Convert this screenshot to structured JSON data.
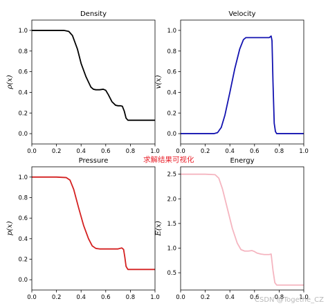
{
  "caption": "求解结果可视化",
  "watermark": "CSDN @Togethe_CZ",
  "chart_data": [
    {
      "type": "line",
      "title": "Density",
      "xlabel": "",
      "ylabel": "ρ(x)",
      "xlim": [
        0.0,
        1.0
      ],
      "ylim": [
        -0.1,
        1.1
      ],
      "xticks": [
        "0.0",
        "0.2",
        "0.4",
        "0.6",
        "0.8",
        "1.0"
      ],
      "yticks": [
        "0.0",
        "0.2",
        "0.4",
        "0.6",
        "0.8",
        "1.0"
      ],
      "grid": false,
      "legend": "none",
      "color": "#000000",
      "x": [
        0.0,
        0.2,
        0.26,
        0.3,
        0.33,
        0.37,
        0.4,
        0.44,
        0.48,
        0.5,
        0.52,
        0.55,
        0.58,
        0.6,
        0.62,
        0.65,
        0.68,
        0.7,
        0.72,
        0.735,
        0.75,
        0.765,
        0.78,
        1.0
      ],
      "y": [
        1.0,
        1.0,
        1.0,
        0.99,
        0.95,
        0.82,
        0.68,
        0.55,
        0.45,
        0.43,
        0.425,
        0.425,
        0.43,
        0.42,
        0.38,
        0.31,
        0.275,
        0.27,
        0.27,
        0.265,
        0.22,
        0.15,
        0.13,
        0.13
      ]
    },
    {
      "type": "line",
      "title": "Velocity",
      "xlabel": "",
      "ylabel": "v(x)",
      "xlim": [
        0.0,
        1.0
      ],
      "ylim": [
        -0.1,
        1.1
      ],
      "xticks": [
        "0.0",
        "0.2",
        "0.4",
        "0.6",
        "0.8",
        "1.0"
      ],
      "yticks": [
        "0.0",
        "0.2",
        "0.4",
        "0.6",
        "0.8",
        "1.0"
      ],
      "grid": false,
      "legend": "none",
      "color": "#1212b0",
      "x": [
        0.0,
        0.27,
        0.3,
        0.33,
        0.36,
        0.4,
        0.44,
        0.48,
        0.51,
        0.53,
        0.55,
        0.6,
        0.65,
        0.7,
        0.72,
        0.735,
        0.742,
        0.75,
        0.76,
        0.77,
        0.78,
        0.8,
        1.0
      ],
      "y": [
        0.0,
        0.0,
        0.01,
        0.06,
        0.18,
        0.4,
        0.63,
        0.82,
        0.91,
        0.93,
        0.93,
        0.93,
        0.93,
        0.93,
        0.93,
        0.945,
        0.9,
        0.5,
        0.1,
        0.02,
        0.0,
        0.0,
        0.0
      ]
    },
    {
      "type": "line",
      "title": "Pressure",
      "xlabel": "",
      "ylabel": "p(x)",
      "xlim": [
        0.0,
        1.0
      ],
      "ylim": [
        -0.1,
        1.1
      ],
      "xticks": [
        "0.0",
        "0.2",
        "0.4",
        "0.6",
        "0.8",
        "1.0"
      ],
      "yticks": [
        "0.0",
        "0.2",
        "0.4",
        "0.6",
        "0.8",
        "1.0"
      ],
      "grid": false,
      "legend": "none",
      "color": "#d42020",
      "x": [
        0.0,
        0.2,
        0.28,
        0.31,
        0.34,
        0.38,
        0.42,
        0.46,
        0.49,
        0.52,
        0.55,
        0.6,
        0.65,
        0.7,
        0.73,
        0.745,
        0.755,
        0.765,
        0.78,
        1.0
      ],
      "y": [
        1.0,
        1.0,
        0.995,
        0.97,
        0.88,
        0.7,
        0.53,
        0.4,
        0.33,
        0.305,
        0.3,
        0.3,
        0.3,
        0.3,
        0.31,
        0.295,
        0.22,
        0.13,
        0.1,
        0.1
      ]
    },
    {
      "type": "line",
      "title": "Energy",
      "xlabel": "",
      "ylabel": "E(x)",
      "xlim": [
        0.0,
        1.0
      ],
      "ylim": [
        0.15,
        2.65
      ],
      "xticks": [
        "0.0",
        "0.2",
        "0.4",
        "0.6",
        "0.8",
        "1.0"
      ],
      "yticks": [
        "0.5",
        "1.0",
        "1.5",
        "2.0",
        "2.5"
      ],
      "grid": false,
      "legend": "none",
      "color": "#f5b5c0",
      "x": [
        0.0,
        0.2,
        0.28,
        0.31,
        0.34,
        0.38,
        0.42,
        0.46,
        0.49,
        0.52,
        0.55,
        0.58,
        0.6,
        0.62,
        0.65,
        0.68,
        0.7,
        0.72,
        0.735,
        0.75,
        0.765,
        0.78,
        1.0
      ],
      "y": [
        2.5,
        2.5,
        2.49,
        2.42,
        2.2,
        1.8,
        1.4,
        1.1,
        0.97,
        0.94,
        0.94,
        0.95,
        0.93,
        0.9,
        0.88,
        0.87,
        0.87,
        0.87,
        0.88,
        0.55,
        0.3,
        0.25,
        0.25
      ]
    }
  ]
}
